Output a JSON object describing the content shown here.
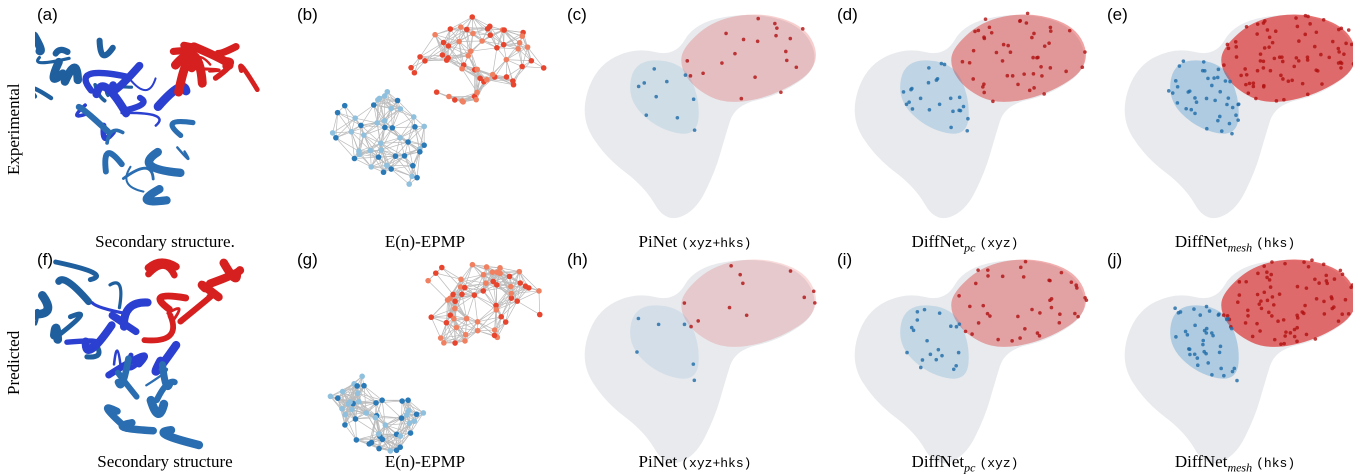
{
  "rows": [
    {
      "label": "Experimental",
      "panels": [
        {
          "tag": "(a)",
          "caption": {
            "name": "Secondary structure."
          }
        },
        {
          "tag": "(b)",
          "caption": {
            "name": "E(n)-EPMP"
          }
        },
        {
          "tag": "(c)",
          "caption": {
            "name": "PiNet",
            "note": "(xyz+hks)"
          }
        },
        {
          "tag": "(d)",
          "caption": {
            "name": "DiffNet",
            "sub": "pc",
            "note": "(xyz)"
          }
        },
        {
          "tag": "(e)",
          "caption": {
            "name": "DiffNet",
            "sub": "mesh",
            "note": "(hks)"
          }
        }
      ]
    },
    {
      "label": "Predicted",
      "panels": [
        {
          "tag": "(f)",
          "caption": {
            "name": "Secondary structure"
          }
        },
        {
          "tag": "(g)",
          "caption": {
            "name": "E(n)-EPMP"
          }
        },
        {
          "tag": "(h)",
          "caption": {
            "name": "PiNet",
            "note": "(xyz+hks)"
          }
        },
        {
          "tag": "(i)",
          "caption": {
            "name": "DiffNet",
            "sub": "pc",
            "note": "(xyz)"
          }
        },
        {
          "tag": "(j)",
          "caption": {
            "name": "DiffNet",
            "sub": "mesh",
            "note": "(hks)"
          }
        }
      ]
    }
  ]
}
